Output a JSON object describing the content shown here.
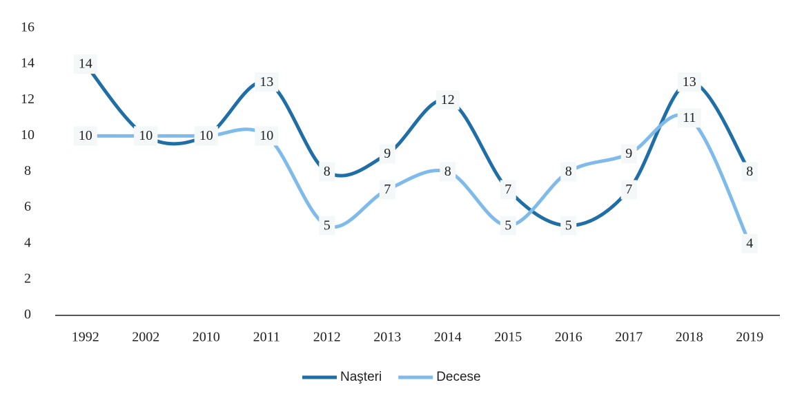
{
  "chart_data": {
    "type": "line",
    "categories": [
      "1992",
      "2002",
      "2010",
      "2011",
      "2012",
      "2013",
      "2014",
      "2015",
      "2016",
      "2017",
      "2018",
      "2019"
    ],
    "series": [
      {
        "name": "Naşteri",
        "color": "#1f6ea6",
        "values": [
          14,
          10,
          10,
          13,
          8,
          9,
          12,
          7,
          5,
          7,
          13,
          8
        ]
      },
      {
        "name": "Decese",
        "color": "#7fbbea",
        "values": [
          10,
          10,
          10,
          10,
          5,
          7,
          8,
          5,
          8,
          9,
          11,
          4
        ]
      }
    ],
    "ylim": [
      0,
      16
    ],
    "yticks": [
      0,
      2,
      4,
      6,
      8,
      10,
      12,
      14,
      16
    ],
    "grid": false,
    "legend": "bottom"
  }
}
